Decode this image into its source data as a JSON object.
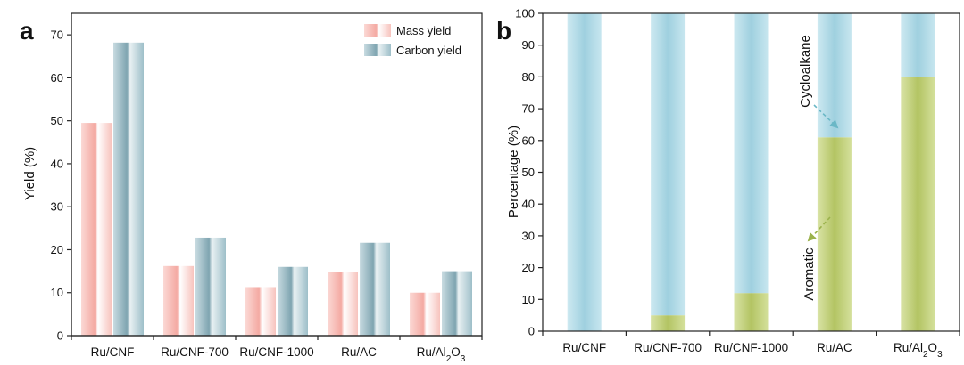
{
  "colors": {
    "mass": "#f7b6b0",
    "carbon": "#8fb3bf",
    "aromatic": "#b9c96e",
    "cycloalkane": "#a9d6e4",
    "axis": "#222222"
  },
  "chart_data": [
    {
      "panel": "a",
      "type": "bar",
      "categories": [
        "Ru/CNF",
        "Ru/CNF-700",
        "Ru/CNF-1000",
        "Ru/AC",
        "Ru/Al2O3"
      ],
      "series": [
        {
          "name": "Mass yield",
          "color": "mass",
          "values": [
            49.5,
            16.2,
            11.3,
            14.8,
            10.0
          ]
        },
        {
          "name": "Carbon yield",
          "color": "carbon",
          "values": [
            68.2,
            22.8,
            16.0,
            21.6,
            15.0
          ]
        }
      ],
      "ylabel": "Yield (%)",
      "ylim": [
        0,
        75
      ],
      "yticks": [
        0,
        10,
        20,
        30,
        40,
        50,
        60,
        70
      ],
      "legend": "top-right",
      "grid": false
    },
    {
      "panel": "b",
      "type": "bar",
      "stacked": true,
      "categories": [
        "Ru/CNF",
        "Ru/CNF-700",
        "Ru/CNF-1000",
        "Ru/AC",
        "Ru/Al2O3"
      ],
      "series": [
        {
          "name": "Aromatic",
          "color": "aromatic",
          "values": [
            0,
            5,
            12,
            61,
            80
          ]
        },
        {
          "name": "Cycloalkane",
          "color": "cycloalkane",
          "values": [
            100,
            95,
            88,
            39,
            20
          ]
        }
      ],
      "ylabel": "Percentage (%)",
      "ylim": [
        0,
        100
      ],
      "yticks": [
        0,
        10,
        20,
        30,
        40,
        50,
        60,
        70,
        80,
        90,
        100
      ],
      "annotations": [
        "Cycloalkane",
        "Aromatic"
      ],
      "grid": false
    }
  ]
}
